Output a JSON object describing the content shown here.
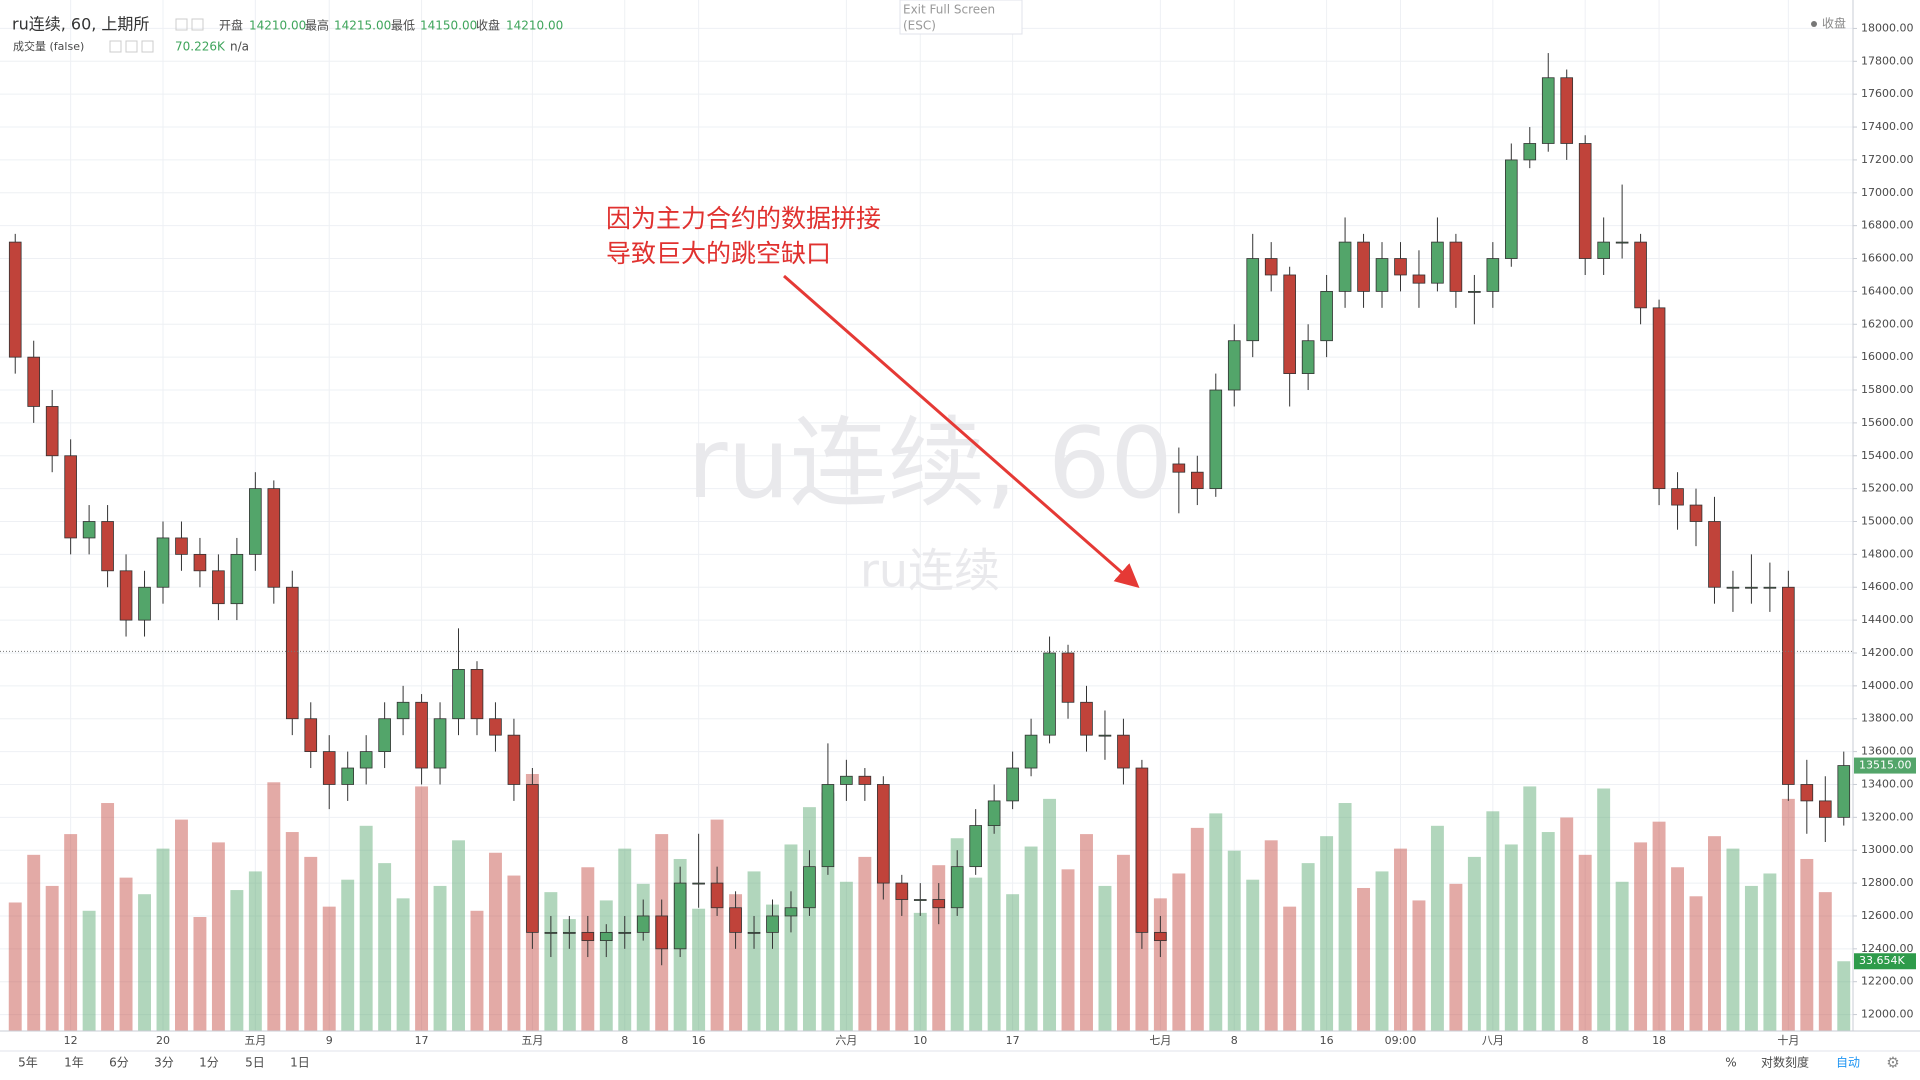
{
  "header": {
    "symbol": "ru连续, 60, 上期所",
    "open_label": "开盘",
    "open": "14210.00",
    "high_label": "最高",
    "high": "14215.00",
    "low_label": "最低",
    "low": "14150.00",
    "close_label": "收盘",
    "close": {
      "value": 14210,
      "label": "14210.00"
    },
    "volume_title": "成交量 (false)",
    "volume_value": "70.226K",
    "volume_extra": "n/a"
  },
  "fullscreen": [
    "Exit Full Screen",
    "(ESC)"
  ],
  "legend_right": "收盘",
  "chart_data": {
    "type": "candlestick",
    "watermark": "ru连续, 60",
    "watermark_sub": "ru连续",
    "annotation": [
      "因为主力合约的数据拼接",
      "导致巨大的跳空缺口"
    ],
    "categories": [
      null,
      null,
      null,
      "12",
      null,
      null,
      null,
      null,
      "20",
      null,
      null,
      null,
      null,
      "五月",
      null,
      null,
      null,
      "9",
      null,
      null,
      null,
      null,
      "17",
      null,
      null,
      null,
      null,
      null,
      "五月",
      null,
      null,
      null,
      null,
      "8",
      null,
      null,
      null,
      "16",
      null,
      null,
      null,
      null,
      null,
      null,
      null,
      "六月",
      null,
      null,
      null,
      "10",
      null,
      null,
      null,
      null,
      "17",
      null,
      null,
      null,
      null,
      null,
      null,
      null,
      "七月",
      null,
      null,
      null,
      "8",
      null,
      null,
      null,
      null,
      "16",
      null,
      null,
      null,
      "09:00",
      null,
      null,
      null,
      null,
      "八月",
      null,
      null,
      null,
      null,
      "8",
      null,
      null,
      null,
      "18",
      null,
      null,
      null,
      null,
      null,
      null,
      "十月",
      null,
      null,
      null
    ],
    "open": [
      16700,
      16000,
      15700,
      15400,
      14900,
      15000,
      14700,
      14400,
      14600,
      14900,
      14800,
      14700,
      14500,
      14800,
      15200,
      14600,
      13800,
      13600,
      13400,
      13500,
      13600,
      13800,
      13900,
      13500,
      13800,
      14100,
      13800,
      13700,
      13400,
      12500,
      12500,
      12500,
      12450,
      12500,
      12500,
      12600,
      12400,
      12800,
      12800,
      12650,
      12500,
      12500,
      12600,
      12650,
      12900,
      13400,
      13450,
      13400,
      12800,
      12700,
      12700,
      12650,
      12900,
      13150,
      13300,
      13500,
      13700,
      14200,
      13900,
      13700,
      13700,
      13500,
      12500,
      15350,
      15300,
      15200,
      15800,
      16100,
      16600,
      16500,
      15900,
      16100,
      16400,
      16700,
      16400,
      16600,
      16500,
      16450,
      16700,
      16400,
      16400,
      16600,
      17200,
      17300,
      17700,
      17300,
      16600,
      16700,
      16700,
      16300,
      15200,
      15100,
      15000,
      14600,
      14600,
      14600,
      14600,
      13400,
      13300,
      13200
    ],
    "high": [
      16750,
      16100,
      15800,
      15500,
      15100,
      15100,
      14800,
      14700,
      15000,
      15000,
      14900,
      14800,
      14900,
      15300,
      15250,
      14700,
      13900,
      13700,
      13600,
      13700,
      13900,
      14000,
      13950,
      13900,
      14350,
      14150,
      13900,
      13800,
      13500,
      12600,
      12600,
      12600,
      12550,
      12600,
      12700,
      12700,
      12900,
      13100,
      12900,
      12750,
      12600,
      12700,
      12750,
      13000,
      13650,
      13550,
      13500,
      13450,
      12850,
      12800,
      12800,
      13000,
      13250,
      13400,
      13600,
      13800,
      14300,
      14250,
      14000,
      13850,
      13800,
      13550,
      12600,
      15450,
      15400,
      15900,
      16200,
      16750,
      16700,
      16550,
      16200,
      16500,
      16850,
      16750,
      16700,
      16700,
      16650,
      16850,
      16750,
      16500,
      16700,
      17300,
      17400,
      17850,
      17750,
      17350,
      16850,
      17050,
      16750,
      16350,
      15300,
      15200,
      15150,
      14700,
      14800,
      14750,
      14700,
      13550,
      13450,
      13600
    ],
    "low": [
      15900,
      15600,
      15300,
      14800,
      14800,
      14600,
      14300,
      14300,
      14500,
      14700,
      14600,
      14400,
      14400,
      14700,
      14500,
      13700,
      13500,
      13250,
      13300,
      13400,
      13500,
      13700,
      13400,
      13400,
      13700,
      13700,
      13600,
      13300,
      12400,
      12350,
      12400,
      12350,
      12350,
      12400,
      12450,
      12300,
      12350,
      12650,
      12600,
      12400,
      12400,
      12400,
      12500,
      12600,
      12850,
      13300,
      13300,
      12700,
      12600,
      12600,
      12550,
      12600,
      12850,
      13100,
      13250,
      13450,
      13650,
      13800,
      13600,
      13550,
      13400,
      12400,
      12350,
      15050,
      15100,
      15150,
      15700,
      16000,
      16400,
      15700,
      15800,
      16000,
      16300,
      16300,
      16300,
      16400,
      16300,
      16400,
      16300,
      16200,
      16300,
      16550,
      17150,
      17250,
      17200,
      16500,
      16500,
      16600,
      16200,
      15100,
      14950,
      14850,
      14500,
      14450,
      14500,
      14450,
      13300,
      13100,
      13050,
      13150
    ],
    "close": [
      16000,
      15700,
      15400,
      14900,
      15000,
      14700,
      14400,
      14600,
      14900,
      14800,
      14700,
      14500,
      14800,
      15200,
      14600,
      13800,
      13600,
      13400,
      13500,
      13600,
      13800,
      13900,
      13500,
      13800,
      14100,
      13800,
      13700,
      13400,
      12500,
      12500,
      12500,
      12450,
      12500,
      12500,
      12600,
      12400,
      12800,
      12800,
      12650,
      12500,
      12500,
      12600,
      12650,
      12900,
      13400,
      13450,
      13400,
      12800,
      12700,
      12700,
      12650,
      12900,
      13150,
      13300,
      13500,
      13700,
      14200,
      13900,
      13700,
      13700,
      13500,
      12500,
      12450,
      15300,
      15200,
      15800,
      16100,
      16600,
      16500,
      15900,
      16100,
      16400,
      16700,
      16400,
      16600,
      16500,
      16450,
      16700,
      16400,
      16400,
      16600,
      17200,
      17300,
      17700,
      17300,
      16600,
      16700,
      16700,
      16300,
      15200,
      15100,
      15000,
      14600,
      14600,
      14600,
      14600,
      13400,
      13300,
      13200,
      13515
    ],
    "volume": [
      62,
      85,
      70,
      95,
      58,
      110,
      74,
      66,
      88,
      102,
      55,
      91,
      68,
      77,
      120,
      96,
      84,
      60,
      73,
      99,
      81,
      64,
      118,
      70,
      92,
      58,
      86,
      75,
      124,
      67,
      54,
      79,
      63,
      88,
      71,
      95,
      83,
      59,
      102,
      66,
      77,
      61,
      90,
      108,
      115,
      72,
      84,
      97,
      68,
      57,
      80,
      93,
      74,
      101,
      66,
      89,
      112,
      78,
      95,
      70,
      85,
      121,
      64,
      76,
      98,
      105,
      87,
      73,
      92,
      60,
      81,
      94,
      110,
      69,
      77,
      88,
      63,
      99,
      71,
      84,
      106,
      90,
      118,
      96,
      103,
      85,
      117,
      72,
      91,
      101,
      79,
      65,
      94,
      88,
      70,
      76,
      112,
      83,
      67,
      33.654
    ],
    "up_color": "#53a56a",
    "down_color": "#c0433a",
    "ylim": [
      11900,
      18100
    ],
    "yticks": [
      {
        "value": 12000,
        "label": "12000.00"
      },
      {
        "value": 12200,
        "label": "12200.00"
      },
      {
        "value": 12400,
        "label": "12400.00"
      },
      {
        "value": 12600,
        "label": "12600.00"
      },
      {
        "value": 12800,
        "label": "12800.00"
      },
      {
        "value": 13000,
        "label": "13000.00"
      },
      {
        "value": 13200,
        "label": "13200.00"
      },
      {
        "value": 13400,
        "label": "13400.00"
      },
      {
        "value": 13600,
        "label": "13600.00"
      },
      {
        "value": 13800,
        "label": "13800.00"
      },
      {
        "value": 14000,
        "label": "14000.00"
      },
      {
        "value": 14200,
        "label": "14200.00"
      },
      {
        "value": 14400,
        "label": "14400.00"
      },
      {
        "value": 14600,
        "label": "14600.00"
      },
      {
        "value": 14800,
        "label": "14800.00"
      },
      {
        "value": 15000,
        "label": "15000.00"
      },
      {
        "value": 15200,
        "label": "15200.00"
      },
      {
        "value": 15400,
        "label": "15400.00"
      },
      {
        "value": 15600,
        "label": "15600.00"
      },
      {
        "value": 15800,
        "label": "15800.00"
      },
      {
        "value": 16000,
        "label": "16000.00"
      },
      {
        "value": 16200,
        "label": "16200.00"
      },
      {
        "value": 16400,
        "label": "16400.00"
      },
      {
        "value": 16600,
        "label": "16600.00"
      },
      {
        "value": 16800,
        "label": "16800.00"
      },
      {
        "value": 17000,
        "label": "17000.00"
      },
      {
        "value": 17200,
        "label": "17200.00"
      },
      {
        "value": 17400,
        "label": "17400.00"
      },
      {
        "value": 17600,
        "label": "17600.00"
      },
      {
        "value": 17800,
        "label": "17800.00"
      },
      {
        "value": 18000,
        "label": "18000.00"
      }
    ],
    "grid": true,
    "last_price": {
      "value": 13515,
      "label": "13515.00"
    },
    "last_volume": {
      "value": 33.654,
      "label": "33.654K"
    }
  },
  "toolbar": {
    "ranges": [
      "5年",
      "1年",
      "6分",
      "3分",
      "1分",
      "5日",
      "1日"
    ],
    "right": [
      "%",
      "对数刻度",
      "自动"
    ]
  }
}
